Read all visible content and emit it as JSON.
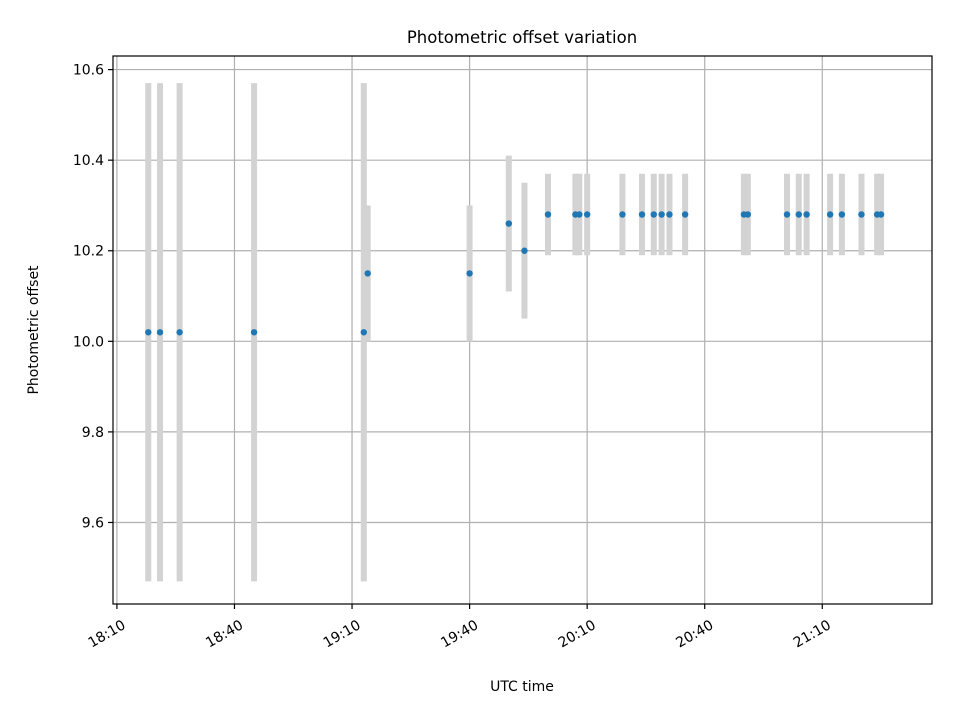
{
  "chart_data": {
    "type": "scatter",
    "title": "Photometric offset variation",
    "xlabel": "UTC time",
    "ylabel": "Photometric offset",
    "x_ticks": [
      "18:10",
      "18:40",
      "19:10",
      "19:40",
      "20:10",
      "20:40",
      "21:10"
    ],
    "y_ticks": [
      "9.6",
      "9.8",
      "10.0",
      "10.2",
      "10.4",
      "10.6"
    ],
    "xlim": [
      "18:09",
      "21:38"
    ],
    "ylim": [
      9.42,
      10.63
    ],
    "grid": true,
    "colors": {
      "points": "#1f77b4",
      "error_bars": "#d3d3d3",
      "grid": "#b0b0b0"
    },
    "points": [
      {
        "x": "18:18",
        "y": 10.02,
        "y_low": 9.47,
        "y_high": 10.57
      },
      {
        "x": "18:21",
        "y": 10.02,
        "y_low": 9.47,
        "y_high": 10.57
      },
      {
        "x": "18:26",
        "y": 10.02,
        "y_low": 9.47,
        "y_high": 10.57
      },
      {
        "x": "18:45",
        "y": 10.02,
        "y_low": 9.47,
        "y_high": 10.57
      },
      {
        "x": "19:13",
        "y": 10.02,
        "y_low": 9.47,
        "y_high": 10.57
      },
      {
        "x": "19:14",
        "y": 10.15,
        "y_low": 10.0,
        "y_high": 10.3
      },
      {
        "x": "19:40",
        "y": 10.15,
        "y_low": 10.0,
        "y_high": 10.3
      },
      {
        "x": "19:50",
        "y": 10.26,
        "y_low": 10.11,
        "y_high": 10.41
      },
      {
        "x": "19:54",
        "y": 10.2,
        "y_low": 10.05,
        "y_high": 10.35
      },
      {
        "x": "20:00",
        "y": 10.28,
        "y_low": 10.19,
        "y_high": 10.37
      },
      {
        "x": "20:07",
        "y": 10.28,
        "y_low": 10.19,
        "y_high": 10.37
      },
      {
        "x": "20:08",
        "y": 10.28,
        "y_low": 10.19,
        "y_high": 10.37
      },
      {
        "x": "20:10",
        "y": 10.28,
        "y_low": 10.19,
        "y_high": 10.37
      },
      {
        "x": "20:19",
        "y": 10.28,
        "y_low": 10.19,
        "y_high": 10.37
      },
      {
        "x": "20:24",
        "y": 10.28,
        "y_low": 10.19,
        "y_high": 10.37
      },
      {
        "x": "20:27",
        "y": 10.28,
        "y_low": 10.19,
        "y_high": 10.37
      },
      {
        "x": "20:29",
        "y": 10.28,
        "y_low": 10.19,
        "y_high": 10.37
      },
      {
        "x": "20:31",
        "y": 10.28,
        "y_low": 10.19,
        "y_high": 10.37
      },
      {
        "x": "20:35",
        "y": 10.28,
        "y_low": 10.19,
        "y_high": 10.37
      },
      {
        "x": "20:50",
        "y": 10.28,
        "y_low": 10.19,
        "y_high": 10.37
      },
      {
        "x": "20:51",
        "y": 10.28,
        "y_low": 10.19,
        "y_high": 10.37
      },
      {
        "x": "21:01",
        "y": 10.28,
        "y_low": 10.19,
        "y_high": 10.37
      },
      {
        "x": "21:04",
        "y": 10.28,
        "y_low": 10.19,
        "y_high": 10.37
      },
      {
        "x": "21:06",
        "y": 10.28,
        "y_low": 10.19,
        "y_high": 10.37
      },
      {
        "x": "21:12",
        "y": 10.28,
        "y_low": 10.19,
        "y_high": 10.37
      },
      {
        "x": "21:15",
        "y": 10.28,
        "y_low": 10.19,
        "y_high": 10.37
      },
      {
        "x": "21:20",
        "y": 10.28,
        "y_low": 10.19,
        "y_high": 10.37
      },
      {
        "x": "21:24",
        "y": 10.28,
        "y_low": 10.19,
        "y_high": 10.37
      },
      {
        "x": "21:25",
        "y": 10.28,
        "y_low": 10.19,
        "y_high": 10.37
      }
    ]
  }
}
